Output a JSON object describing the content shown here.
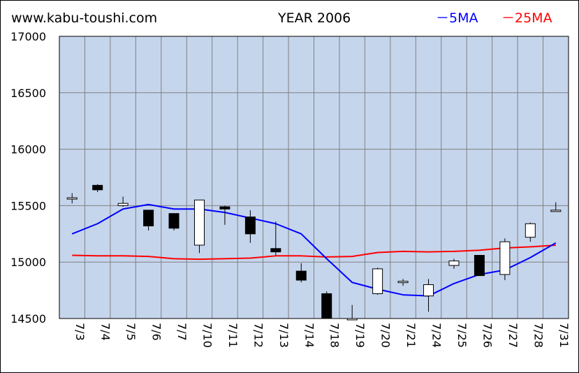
{
  "site": "www.kabu-toushi.com",
  "title": "YEAR 2006",
  "legend": [
    {
      "label": "－5MA",
      "color": "#0000ff"
    },
    {
      "label": "－25MA",
      "color": "#ff0000"
    }
  ],
  "colors": {
    "plot_bg": "#c5d5ec",
    "grid": "#808080",
    "up_candle": "#ffffff",
    "down_candle": "#000000",
    "ma5": "#0000ff",
    "ma25": "#ff0000"
  },
  "chart_data": {
    "type": "candlestick",
    "title": "YEAR 2006",
    "ylim": [
      14500,
      17000
    ],
    "yticks": [
      "14500",
      "15000",
      "15500",
      "16000",
      "16500",
      "17000"
    ],
    "grid": true,
    "legend_position": "top-right",
    "categories": [
      "7/3",
      "7/4",
      "7/5",
      "7/6",
      "7/7",
      "7/10",
      "7/11",
      "7/12",
      "7/13",
      "7/14",
      "7/18",
      "7/19",
      "7/20",
      "7/21",
      "7/24",
      "7/25",
      "7/26",
      "7/27",
      "7/28",
      "7/31"
    ],
    "ohlc": [
      {
        "open": 15560,
        "high": 15610,
        "low": 15520,
        "close": 15570
      },
      {
        "open": 15680,
        "high": 15690,
        "low": 15620,
        "close": 15640
      },
      {
        "open": 15500,
        "high": 15580,
        "low": 15490,
        "close": 15520
      },
      {
        "open": 15460,
        "high": 15460,
        "low": 15280,
        "close": 15320
      },
      {
        "open": 15430,
        "high": 15430,
        "low": 15280,
        "close": 15300
      },
      {
        "open": 15150,
        "high": 15550,
        "low": 15080,
        "close": 15550
      },
      {
        "open": 15490,
        "high": 15500,
        "low": 15330,
        "close": 15470
      },
      {
        "open": 15400,
        "high": 15460,
        "low": 15170,
        "close": 15250
      },
      {
        "open": 15120,
        "high": 15360,
        "low": 15060,
        "close": 15090
      },
      {
        "open": 14920,
        "high": 14990,
        "low": 14820,
        "close": 14840
      },
      {
        "open": 14720,
        "high": 14740,
        "low": 14500,
        "close": 14500
      },
      {
        "open": 14490,
        "high": 14620,
        "low": 14490,
        "close": 14500
      },
      {
        "open": 14720,
        "high": 14950,
        "low": 14710,
        "close": 14940
      },
      {
        "open": 14820,
        "high": 14850,
        "low": 14790,
        "close": 14830
      },
      {
        "open": 14700,
        "high": 14850,
        "low": 14560,
        "close": 14800
      },
      {
        "open": 14970,
        "high": 15030,
        "low": 14940,
        "close": 15010
      },
      {
        "open": 15060,
        "high": 15060,
        "low": 14880,
        "close": 14880
      },
      {
        "open": 14890,
        "high": 15210,
        "low": 14840,
        "close": 15180
      },
      {
        "open": 15220,
        "high": 15350,
        "low": 15180,
        "close": 15340
      },
      {
        "open": 15450,
        "high": 15530,
        "low": 15450,
        "close": 15460
      }
    ],
    "series": [
      {
        "name": "5MA",
        "values": [
          15250,
          15340,
          15470,
          15510,
          15470,
          15470,
          15440,
          15390,
          15340,
          15250,
          15030,
          14820,
          14760,
          14710,
          14700,
          14810,
          14890,
          14930,
          15040,
          15170
        ]
      },
      {
        "name": "25MA",
        "values": [
          15060,
          15055,
          15055,
          15050,
          15030,
          15025,
          15030,
          15035,
          15055,
          15055,
          15045,
          15050,
          15085,
          15095,
          15090,
          15095,
          15105,
          15125,
          15135,
          15150
        ]
      }
    ]
  }
}
